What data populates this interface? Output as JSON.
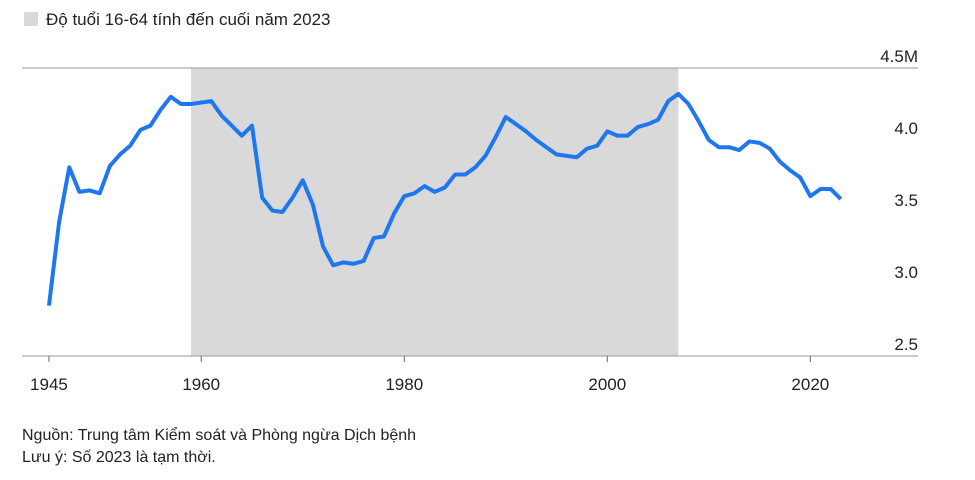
{
  "chart_data": {
    "type": "line",
    "legend": "Độ tuổi 16-64 tính đến cuối năm 2023",
    "shaded_range": [
      1959,
      2007
    ],
    "shade_color": "#d9d9d9",
    "x": [
      1945,
      1946,
      1947,
      1948,
      1949,
      1950,
      1951,
      1952,
      1953,
      1954,
      1955,
      1956,
      1957,
      1958,
      1959,
      1960,
      1961,
      1962,
      1963,
      1964,
      1965,
      1966,
      1967,
      1968,
      1969,
      1970,
      1971,
      1972,
      1973,
      1974,
      1975,
      1976,
      1977,
      1978,
      1979,
      1980,
      1981,
      1982,
      1983,
      1984,
      1985,
      1986,
      1987,
      1988,
      1989,
      1990,
      1991,
      1992,
      1993,
      1994,
      1995,
      1996,
      1997,
      1998,
      1999,
      2000,
      2001,
      2002,
      2003,
      2004,
      2005,
      2006,
      2007,
      2008,
      2009,
      2010,
      2011,
      2012,
      2013,
      2014,
      2015,
      2016,
      2017,
      2018,
      2019,
      2020,
      2021,
      2022,
      2023
    ],
    "series": [
      {
        "color": "#1f77f0",
        "values": [
          2.85,
          3.43,
          3.81,
          3.64,
          3.65,
          3.63,
          3.82,
          3.9,
          3.96,
          4.07,
          4.1,
          4.21,
          4.3,
          4.25,
          4.25,
          4.26,
          4.27,
          4.17,
          4.1,
          4.03,
          4.1,
          3.6,
          3.51,
          3.5,
          3.6,
          3.72,
          3.55,
          3.26,
          3.13,
          3.15,
          3.14,
          3.16,
          3.32,
          3.33,
          3.49,
          3.61,
          3.63,
          3.68,
          3.64,
          3.67,
          3.76,
          3.76,
          3.81,
          3.89,
          4.02,
          4.16,
          4.11,
          4.06,
          4.0,
          3.95,
          3.9,
          3.89,
          3.88,
          3.94,
          3.96,
          4.06,
          4.03,
          4.03,
          4.09,
          4.11,
          4.14,
          4.27,
          4.32,
          4.25,
          4.13,
          4.0,
          3.95,
          3.95,
          3.93,
          3.99,
          3.98,
          3.94,
          3.85,
          3.79,
          3.74,
          3.61,
          3.66,
          3.66,
          3.59
        ]
      }
    ],
    "xlim": [
      1942,
      2031
    ],
    "xticks": [
      1945,
      1960,
      1980,
      2000,
      2020
    ],
    "ylim": [
      2.5,
      4.5
    ],
    "yticks": [
      {
        "value": 4.5,
        "label": "4.5M"
      },
      {
        "value": 4,
        "label": "4.0"
      },
      3.5,
      {
        "value": 3,
        "label": "3.0"
      },
      2.5
    ],
    "source": "Nguồn: Trung tâm Kiểm soát và Phòng ngừa Dịch bệnh",
    "note": "Lưu ý: Số 2023 là tạm thời."
  }
}
